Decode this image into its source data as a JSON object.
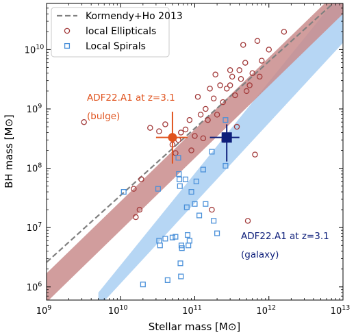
{
  "chart_data": {
    "type": "scatter",
    "xlabel": "Stellar mass [M⊙]",
    "ylabel": "BH mass [M⊙]",
    "xscale": "log",
    "yscale": "log",
    "xlim": [
      1000000000.0,
      10000000000000.0
    ],
    "ylim": [
      600000.0,
      60000000000.0
    ],
    "x_ticks": [
      1000000000.0,
      10000000000.0,
      100000000000.0,
      1000000000000.0,
      10000000000000.0
    ],
    "x_tick_labels": [
      [
        "10",
        "9"
      ],
      [
        "10",
        "10"
      ],
      [
        "10",
        "11"
      ],
      [
        "10",
        "12"
      ],
      [
        "10",
        "13"
      ]
    ],
    "y_ticks": [
      1000000.0,
      10000000.0,
      100000000.0,
      1000000000.0,
      10000000000.0
    ],
    "y_tick_labels": [
      [
        "10",
        "6"
      ],
      [
        "10",
        "7"
      ],
      [
        "10",
        "8"
      ],
      [
        "10",
        "9"
      ],
      [
        "10",
        "10"
      ]
    ],
    "grid": false,
    "legend_position": "top-left",
    "legend": [
      {
        "label": "Kormendy+Ho 2013",
        "marker": "dashed-line"
      },
      {
        "label": "local Ellipticals",
        "marker": "circle"
      },
      {
        "label": "Local Spirals",
        "marker": "square"
      }
    ],
    "colors": {
      "kormendy": "#808080",
      "ellipticals": "#a23a3a",
      "spirals": "#4a90d9",
      "bulge": "#e0531e",
      "galaxy": "#0d1e7a",
      "red_band": "#c98c8c",
      "blue_band": "#a9cff2"
    },
    "kormendy_line": {
      "x": [
        1000000000.0,
        10000000000000.0
      ],
      "y": [
        2600000.0,
        85000000000.0
      ]
    },
    "red_band": {
      "x": [
        1000000000.0,
        10000000000000.0
      ],
      "y_low": [
        550000.0,
        40000000000.0
      ],
      "y_high": [
        1700000.0,
        120000000000.0
      ]
    },
    "blue_band": {
      "x": [
        5000000000.0,
        10000000000000.0
      ],
      "y_low": [
        450000.0,
        13000000000.0
      ],
      "y_high": [
        800000.0,
        100000000000.0
      ]
    },
    "series": [
      {
        "name": "local Ellipticals",
        "marker": "circle",
        "points": [
          [
            3200000000.0,
            600000000.0
          ],
          [
            15000000000.0,
            45000000.0
          ],
          [
            16000000000.0,
            15000000.0
          ],
          [
            18000000000.0,
            20000000.0
          ],
          [
            19000000000.0,
            65000000.0
          ],
          [
            25000000000.0,
            480000000.0
          ],
          [
            33000000000.0,
            420000000.0
          ],
          [
            40000000000.0,
            550000000.0
          ],
          [
            50000000000.0,
            250000000.0
          ],
          [
            55000000000.0,
            180000000.0
          ],
          [
            60000000000.0,
            300000000.0
          ],
          [
            65000000000.0,
            400000000.0
          ],
          [
            75000000000.0,
            450000000.0
          ],
          [
            85000000000.0,
            650000000.0
          ],
          [
            90000000000.0,
            200000000.0
          ],
          [
            100000000000.0,
            350000000.0
          ],
          [
            110000000000.0,
            1600000000.0
          ],
          [
            120000000000.0,
            800000000.0
          ],
          [
            130000000000.0,
            320000000.0
          ],
          [
            140000000000.0,
            1000000000.0
          ],
          [
            150000000000.0,
            650000000.0
          ],
          [
            160000000000.0,
            2200000000.0
          ],
          [
            170000000000.0,
            20000000.0
          ],
          [
            180000000000.0,
            1500000000.0
          ],
          [
            190000000000.0,
            3800000000.0
          ],
          [
            200000000000.0,
            800000000.0
          ],
          [
            220000000000.0,
            2500000000.0
          ],
          [
            240000000000.0,
            1300000000.0
          ],
          [
            250000000000.0,
            300000000.0
          ],
          [
            270000000000.0,
            2200000000.0
          ],
          [
            300000000000.0,
            2500000000.0
          ],
          [
            300000000000.0,
            4500000000.0
          ],
          [
            320000000000.0,
            3500000000.0
          ],
          [
            350000000000.0,
            1700000000.0
          ],
          [
            370000000000.0,
            500000000.0
          ],
          [
            400000000000.0,
            4500000000.0
          ],
          [
            420000000000.0,
            3200000000.0
          ],
          [
            450000000000.0,
            12000000000.0
          ],
          [
            480000000000.0,
            6000000000.0
          ],
          [
            500000000000.0,
            2000000000.0
          ],
          [
            520000000000.0,
            13000000.0
          ],
          [
            550000000000.0,
            2500000000.0
          ],
          [
            600000000000.0,
            4000000000.0
          ],
          [
            650000000000.0,
            170000000.0
          ],
          [
            700000000000.0,
            14000000000.0
          ],
          [
            750000000000.0,
            3500000000.0
          ],
          [
            800000000000.0,
            6500000000.0
          ],
          [
            1000000000000.0,
            10000000000.0
          ],
          [
            1600000000000.0,
            20000000000.0
          ]
        ]
      },
      {
        "name": "Local Spirals",
        "marker": "square",
        "points": [
          [
            11000000000.0,
            40000000.0
          ],
          [
            20000000000.0,
            1100000.0
          ],
          [
            32000000000.0,
            45000000.0
          ],
          [
            33000000000.0,
            6000000.0
          ],
          [
            34000000000.0,
            5000000.0
          ],
          [
            40000000000.0,
            6500000.0
          ],
          [
            43000000000.0,
            1300000.0
          ],
          [
            50000000000.0,
            6800000.0
          ],
          [
            55000000000.0,
            7000000.0
          ],
          [
            60000000000.0,
            150000000.0
          ],
          [
            61000000000.0,
            80000000.0
          ],
          [
            62000000000.0,
            65000000.0
          ],
          [
            63000000000.0,
            50000000.0
          ],
          [
            64000000000.0,
            2500000.0
          ],
          [
            65000000000.0,
            1500000.0
          ],
          [
            66000000000.0,
            5000000.0
          ],
          [
            67000000000.0,
            4500000.0
          ],
          [
            75000000000.0,
            65000000.0
          ],
          [
            78000000000.0,
            22000000.0
          ],
          [
            80000000000.0,
            7500000.0
          ],
          [
            82000000000.0,
            5000000.0
          ],
          [
            85000000000.0,
            6000000.0
          ],
          [
            90000000000.0,
            40000000.0
          ],
          [
            100000000000.0,
            25000000.0
          ],
          [
            105000000000.0,
            60000000.0
          ],
          [
            115000000000.0,
            16000000.0
          ],
          [
            130000000000.0,
            95000000.0
          ],
          [
            140000000000.0,
            25000000.0
          ],
          [
            170000000000.0,
            190000000.0
          ],
          [
            180000000000.0,
            13000000.0
          ],
          [
            200000000000.0,
            8000000.0
          ],
          [
            260000000000.0,
            110000000.0
          ],
          [
            260000000000.0,
            650000000.0
          ]
        ]
      }
    ],
    "highlights": [
      {
        "label_lines": [
          "ADF22.A1  at z=3.1",
          "(bulge)"
        ],
        "x": 50000000000.0,
        "y": 330000000.0,
        "x_err": [
          30000000000.0,
          80000000000.0
        ],
        "y_err": [
          120000000.0,
          900000000.0
        ],
        "marker": "filled-circle",
        "color_key": "bulge"
      },
      {
        "label_lines": [
          "ADF22.A1  at z=3.1",
          "(galaxy)"
        ],
        "x": 270000000000.0,
        "y": 330000000.0,
        "x_err": [
          160000000000.0,
          400000000000.0
        ],
        "y_err": [
          130000000.0,
          550000000.0
        ],
        "marker": "filled-square",
        "color_key": "galaxy"
      }
    ]
  }
}
